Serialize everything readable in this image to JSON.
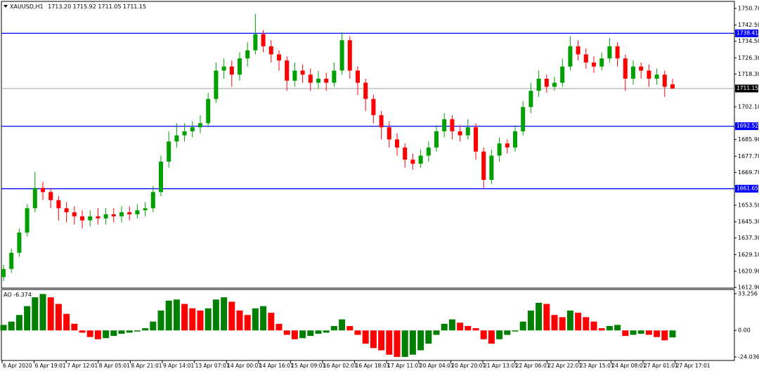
{
  "chart_data": {
    "type": "candlestick",
    "title": "XAUUSD,H1",
    "candles": [
      [
        1618,
        1624,
        1616,
        1622
      ],
      [
        1622,
        1632,
        1620,
        1630
      ],
      [
        1630,
        1642,
        1628,
        1640
      ],
      [
        1640,
        1654,
        1638,
        1652
      ],
      [
        1652,
        1670,
        1650,
        1662
      ],
      [
        1662,
        1665,
        1656,
        1660
      ],
      [
        1660,
        1662,
        1652,
        1656
      ],
      [
        1656,
        1658,
        1646,
        1652
      ],
      [
        1652,
        1655,
        1645,
        1650
      ],
      [
        1650,
        1653,
        1644,
        1648
      ],
      [
        1648,
        1651,
        1642,
        1646
      ],
      [
        1646,
        1651,
        1643,
        1648
      ],
      [
        1648,
        1652,
        1644,
        1647
      ],
      [
        1647,
        1652,
        1644,
        1649
      ],
      [
        1649,
        1652,
        1645,
        1648
      ],
      [
        1648,
        1653,
        1645,
        1650
      ],
      [
        1650,
        1653,
        1646,
        1649
      ],
      [
        1649,
        1654,
        1647,
        1651
      ],
      [
        1651,
        1655,
        1648,
        1652
      ],
      [
        1652,
        1663,
        1650,
        1660
      ],
      [
        1660,
        1678,
        1658,
        1675
      ],
      [
        1675,
        1690,
        1672,
        1685
      ],
      [
        1685,
        1694,
        1682,
        1688
      ],
      [
        1688,
        1694,
        1685,
        1690
      ],
      [
        1690,
        1695,
        1687,
        1692
      ],
      [
        1692,
        1698,
        1689,
        1694
      ],
      [
        1694,
        1709,
        1692,
        1706
      ],
      [
        1706,
        1724,
        1704,
        1720
      ],
      [
        1720,
        1726,
        1716,
        1722
      ],
      [
        1722,
        1725,
        1712,
        1718
      ],
      [
        1718,
        1729,
        1715,
        1726
      ],
      [
        1726,
        1734,
        1722,
        1730
      ],
      [
        1730,
        1748,
        1728,
        1738
      ],
      [
        1738,
        1740,
        1729,
        1732
      ],
      [
        1732,
        1735,
        1724,
        1728
      ],
      [
        1728,
        1730,
        1720,
        1725
      ],
      [
        1725,
        1727,
        1710,
        1715
      ],
      [
        1715,
        1724,
        1712,
        1720
      ],
      [
        1720,
        1723,
        1714,
        1718
      ],
      [
        1718,
        1721,
        1710,
        1714
      ],
      [
        1714,
        1720,
        1711,
        1716
      ],
      [
        1716,
        1719,
        1710,
        1714
      ],
      [
        1714,
        1724,
        1712,
        1720
      ],
      [
        1720,
        1739,
        1718,
        1735
      ],
      [
        1735,
        1737,
        1716,
        1720
      ],
      [
        1720,
        1722,
        1708,
        1714
      ],
      [
        1714,
        1716,
        1700,
        1706
      ],
      [
        1706,
        1708,
        1694,
        1698
      ],
      [
        1698,
        1700,
        1686,
        1692
      ],
      [
        1692,
        1695,
        1682,
        1686
      ],
      [
        1686,
        1689,
        1678,
        1682
      ],
      [
        1682,
        1684,
        1672,
        1676
      ],
      [
        1676,
        1679,
        1671,
        1674
      ],
      [
        1674,
        1681,
        1672,
        1678
      ],
      [
        1678,
        1685,
        1675,
        1682
      ],
      [
        1682,
        1693,
        1680,
        1690
      ],
      [
        1690,
        1699,
        1687,
        1696
      ],
      [
        1696,
        1698,
        1686,
        1690
      ],
      [
        1690,
        1693,
        1685,
        1688
      ],
      [
        1688,
        1696,
        1686,
        1692
      ],
      [
        1692,
        1694,
        1676,
        1680
      ],
      [
        1680,
        1682,
        1662,
        1666
      ],
      [
        1666,
        1681,
        1664,
        1678
      ],
      [
        1678,
        1687,
        1675,
        1684
      ],
      [
        1684,
        1686,
        1679,
        1682
      ],
      [
        1682,
        1693,
        1680,
        1690
      ],
      [
        1690,
        1705,
        1688,
        1702
      ],
      [
        1702,
        1714,
        1699,
        1710
      ],
      [
        1710,
        1720,
        1707,
        1716
      ],
      [
        1716,
        1718,
        1709,
        1712
      ],
      [
        1712,
        1717,
        1710,
        1714
      ],
      [
        1714,
        1726,
        1712,
        1722
      ],
      [
        1722,
        1737,
        1720,
        1732
      ],
      [
        1732,
        1735,
        1725,
        1728
      ],
      [
        1728,
        1731,
        1721,
        1724
      ],
      [
        1724,
        1727,
        1719,
        1722
      ],
      [
        1722,
        1729,
        1720,
        1726
      ],
      [
        1726,
        1736,
        1724,
        1732
      ],
      [
        1732,
        1734,
        1722,
        1726
      ],
      [
        1726,
        1728,
        1710,
        1716
      ],
      [
        1716,
        1725,
        1713,
        1722
      ],
      [
        1722,
        1724,
        1716,
        1720
      ],
      [
        1720,
        1723,
        1712,
        1716
      ],
      [
        1716,
        1721,
        1713,
        1718
      ],
      [
        1718,
        1720,
        1707,
        1712
      ],
      [
        1713.2,
        1715.92,
        1711.05,
        1711.15
      ]
    ],
    "candle_labels": [
      "1713.20",
      "1715.92",
      "1711.05",
      "1711.15"
    ],
    "up_color": "#00a000",
    "down_color": "#ff0000",
    "ylim": [
      1612.9,
      1750.7
    ],
    "yticks": [
      {
        "value": 1750.7,
        "label": "1750.70"
      },
      {
        "value": 1742.5,
        "label": "1742.50"
      },
      {
        "value": 1734.5,
        "label": "1734.50"
      },
      {
        "value": 1726.3,
        "label": "1726.30"
      },
      {
        "value": 1718.3,
        "label": "1718.30"
      },
      {
        "value": 1702.1,
        "label": "1702.10"
      },
      {
        "value": 1685.9,
        "label": "1685.90"
      },
      {
        "value": 1677.7,
        "label": "1677.70"
      },
      {
        "value": 1669.7,
        "label": "1669.70"
      },
      {
        "value": 1653.5,
        "label": "1653.50"
      },
      {
        "value": 1645.3,
        "label": "1645.30"
      },
      {
        "value": 1637.3,
        "label": "1637.30"
      },
      {
        "value": 1629.1,
        "label": "1629.10"
      },
      {
        "value": 1620.9,
        "label": "1620.90"
      },
      {
        "value": 1612.9,
        "label": "1612.90"
      }
    ],
    "levels": [
      1738.41,
      1692.52,
      1661.65
    ],
    "level_color": "#0000ff",
    "x_labels": [
      "6 Apr 2020",
      "6 Apr 19:01",
      "7 Apr 12:01",
      "8 Apr 05:01",
      "8 Apr 21:01",
      "9 Apr 14:01",
      "13 Apr 07:01",
      "14 Apr 00:01",
      "14 Apr 16:01",
      "15 Apr 09:01",
      "16 Apr 02:01",
      "16 Apr 18:01",
      "17 Apr 11:01",
      "20 Apr 04:01",
      "20 Apr 20:01",
      "21 Apr 13:01",
      "22 Apr 06:01",
      "22 Apr 22:01",
      "23 Apr 15:01",
      "24 Apr 08:01",
      "27 Apr 01:01",
      "27 Apr 17:01"
    ],
    "indicator": {
      "type": "histogram",
      "name": "AO",
      "last_label": "-6.374",
      "values": [
        5,
        8,
        14,
        22,
        30,
        33,
        30,
        24,
        15,
        6,
        -2,
        -6,
        -8,
        -7,
        -5,
        -3,
        -2,
        -1,
        2,
        8,
        18,
        27,
        28,
        24,
        20,
        18,
        20,
        28,
        30,
        26,
        18,
        14,
        20,
        22,
        16,
        6,
        -4,
        -8,
        -7,
        -5,
        -3,
        -2,
        4,
        10,
        4,
        -4,
        -12,
        -16,
        -18,
        -22,
        -24,
        -24,
        -22,
        -18,
        -12,
        -4,
        6,
        10,
        7,
        4,
        2,
        -8,
        -12,
        -8,
        -4,
        -1,
        8,
        18,
        25,
        24,
        14,
        12,
        18,
        16,
        12,
        8,
        2,
        4,
        5,
        -5,
        -4,
        -3,
        -4,
        -6,
        -9,
        -6.374
      ],
      "ylim": [
        -27.22,
        36.44
      ],
      "yticks": [
        33.256,
        {
          "value": 0,
          "label": "0.00"
        },
        -24.036
      ],
      "up_color": "#008000",
      "down_color": "#ff0000"
    }
  }
}
